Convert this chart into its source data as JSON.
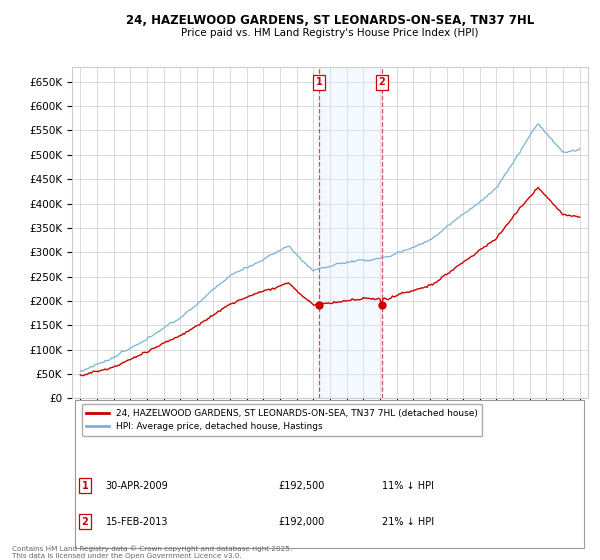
{
  "title": "24, HAZELWOOD GARDENS, ST LEONARDS-ON-SEA, TN37 7HL",
  "subtitle": "Price paid vs. HM Land Registry's House Price Index (HPI)",
  "ylim": [
    0,
    680000
  ],
  "yticks": [
    0,
    50000,
    100000,
    150000,
    200000,
    250000,
    300000,
    350000,
    400000,
    450000,
    500000,
    550000,
    600000,
    650000
  ],
  "year_start": 1995,
  "year_end": 2025,
  "hpi_color": "#7ab3d4",
  "price_color": "#cc0000",
  "shade_color": "#ddeeff",
  "transaction1_year": 2009.333,
  "transaction1_price_val": 192500,
  "transaction1_date": "30-APR-2009",
  "transaction1_hpi_diff": "11% ↓ HPI",
  "transaction2_year": 2013.125,
  "transaction2_price_val": 192000,
  "transaction2_date": "15-FEB-2013",
  "transaction2_hpi_diff": "21% ↓ HPI",
  "legend_label_price": "24, HAZELWOOD GARDENS, ST LEONARDS-ON-SEA, TN37 7HL (detached house)",
  "legend_label_hpi": "HPI: Average price, detached house, Hastings",
  "footer": "Contains HM Land Registry data © Crown copyright and database right 2025.\nThis data is licensed under the Open Government Licence v3.0.",
  "grid_color": "#cccccc",
  "background_color": "#ffffff"
}
